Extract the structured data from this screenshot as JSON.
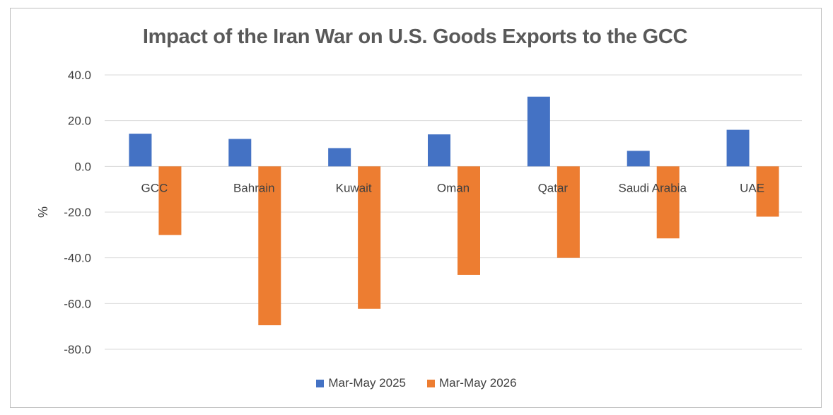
{
  "chart_data": {
    "type": "bar",
    "title": "Impact of the Iran War on U.S. Goods Exports to the GCC",
    "xlabel": "",
    "ylabel": "%",
    "ylim": [
      -80,
      40
    ],
    "yticks": [
      "40.0",
      "20.0",
      "0.0",
      "-20.0",
      "-40.0",
      "-60.0",
      "-80.0"
    ],
    "ytick_values": [
      40,
      20,
      0,
      -20,
      -40,
      -60,
      -80
    ],
    "grid": true,
    "legend": "bottom",
    "categories": [
      "GCC",
      "Bahrain",
      "Kuwait",
      "Oman",
      "Qatar",
      "Saudi Arabia",
      "UAE"
    ],
    "series": [
      {
        "name": "Mar-May 2025",
        "color": "#4472c4",
        "values": [
          14.3,
          12.0,
          8.0,
          14.0,
          30.5,
          6.8,
          16.0
        ]
      },
      {
        "name": "Mar-May 2026",
        "color": "#ed7d31",
        "values": [
          -30.0,
          -69.5,
          -62.3,
          -47.5,
          -40.0,
          -31.5,
          -22.0
        ]
      }
    ]
  }
}
